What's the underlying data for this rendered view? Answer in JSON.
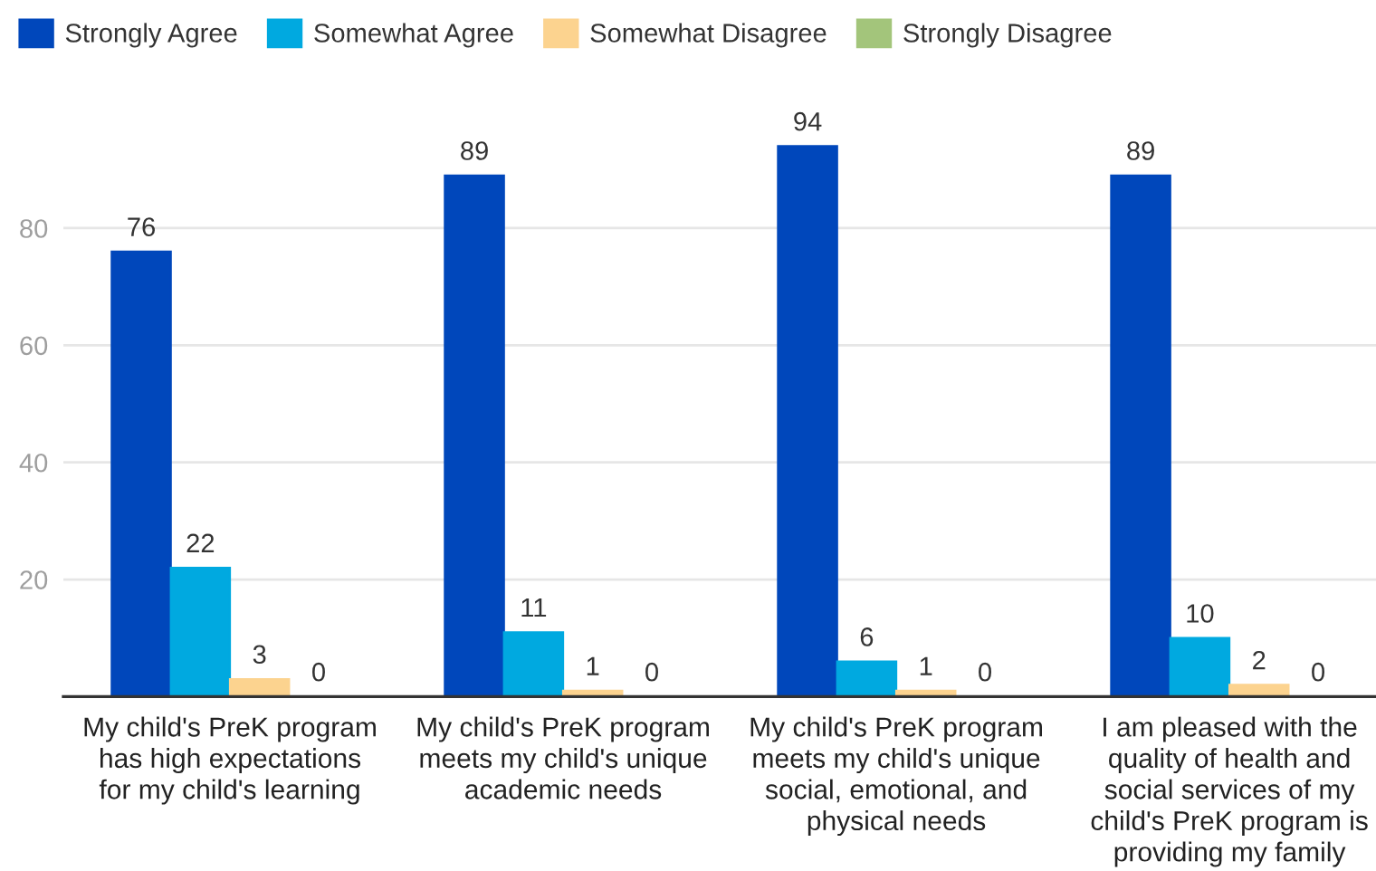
{
  "chart_data": {
    "type": "bar",
    "categories": [
      "My child's PreK program\nhas high expectations\nfor my child's learning",
      "My child's PreK program\nmeets my child's unique\nacademic needs",
      "My child's PreK program\nmeets my child's unique\nsocial, emotional, and\nphysical needs",
      "I am pleased with the\nquality of health and\nsocial services of my\nchild's PreK program is\nproviding my family"
    ],
    "series": [
      {
        "name": "Strongly Agree",
        "color": "#0047bb",
        "values": [
          76,
          89,
          94,
          89
        ]
      },
      {
        "name": "Somewhat Agree",
        "color": "#00a9e0",
        "values": [
          22,
          11,
          6,
          10
        ]
      },
      {
        "name": "Somewhat Disagree",
        "color": "#fcd38f",
        "values": [
          3,
          1,
          1,
          2
        ]
      },
      {
        "name": "Strongly Disagree",
        "color": "#a3c57b",
        "values": [
          0,
          0,
          0,
          0
        ]
      }
    ],
    "ylim": [
      0,
      94
    ],
    "yticks": [
      20,
      40,
      60,
      80
    ],
    "grid": "y",
    "legend": "top",
    "data_labels": true
  }
}
